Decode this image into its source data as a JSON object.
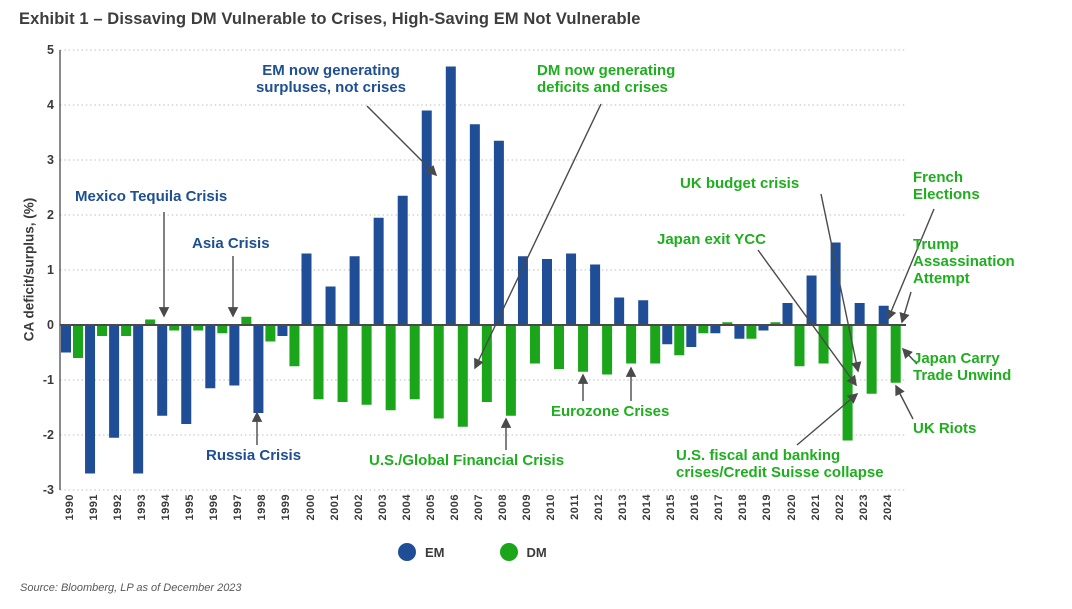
{
  "header": {
    "title": "Exhibit 1 – Dissaving DM Vulnerable to Crises, High-Saving EM Not Vulnerable"
  },
  "source": {
    "text": "Source: Bloomberg, LP as of December 2023"
  },
  "chart_data": {
    "type": "bar",
    "title": "Exhibit 1 – Dissaving DM Vulnerable to Crises, High-Saving EM Not Vulnerable",
    "xlabel": "",
    "ylabel": "CA deficit/surplus, (%)",
    "ylim": [
      -3,
      5
    ],
    "yticks": [
      5,
      4,
      3,
      2,
      1,
      0,
      -1,
      -2,
      -3
    ],
    "grid": "horizontal-dotted",
    "legend_position": "bottom-center",
    "categories": [
      1990,
      1991,
      1992,
      1993,
      1994,
      1995,
      1996,
      1997,
      1998,
      1999,
      2000,
      2001,
      2002,
      2003,
      2004,
      2005,
      2006,
      2007,
      2008,
      2009,
      2010,
      2011,
      2012,
      2013,
      2014,
      2015,
      2016,
      2017,
      2018,
      2019,
      2020,
      2021,
      2022,
      2023,
      2024
    ],
    "series": [
      {
        "name": "EM",
        "color": "#1F4E96",
        "values": [
          -0.5,
          -2.7,
          -2.05,
          -2.7,
          -1.65,
          -1.8,
          -1.15,
          -1.1,
          -1.6,
          -0.2,
          1.3,
          0.7,
          1.25,
          1.95,
          2.35,
          3.9,
          4.7,
          3.65,
          3.35,
          1.25,
          1.2,
          1.3,
          1.1,
          0.5,
          0.45,
          -0.35,
          -0.4,
          -0.15,
          -0.25,
          -0.1,
          0.4,
          0.9,
          1.5,
          0.4,
          0.35
        ]
      },
      {
        "name": "DM",
        "color": "#1AA51A",
        "values": [
          -0.6,
          -0.2,
          -0.2,
          0.1,
          -0.1,
          -0.1,
          -0.15,
          0.15,
          -0.3,
          -0.75,
          -1.35,
          -1.4,
          -1.45,
          -1.55,
          -1.35,
          -1.7,
          -1.85,
          -1.4,
          -1.65,
          -0.7,
          -0.8,
          -0.85,
          -0.9,
          -0.7,
          -0.7,
          -0.55,
          -0.15,
          0.05,
          -0.25,
          0.05,
          -0.75,
          -0.7,
          -2.1,
          -1.25,
          -1.05
        ]
      }
    ],
    "legend": {
      "em": "EM",
      "dm": "DM"
    },
    "colors": {
      "em": "#1F4E96",
      "dm": "#1AA51A",
      "em_text": "#1D4F91",
      "dm_text": "#1FAE1F",
      "arrow": "#4a4a4a"
    },
    "annotations": [
      {
        "id": "mexico",
        "series": "EM",
        "lines": [
          "Mexico Tequila Crisis"
        ]
      },
      {
        "id": "asia",
        "series": "EM",
        "lines": [
          "Asia Crisis"
        ]
      },
      {
        "id": "russia",
        "series": "EM",
        "lines": [
          "Russia Crisis"
        ]
      },
      {
        "id": "em_gen",
        "series": "EM",
        "lines": [
          "EM now generating",
          "surpluses, not crises"
        ]
      },
      {
        "id": "dm_gen",
        "series": "DM",
        "lines": [
          "DM now generating",
          "deficits and crises"
        ]
      },
      {
        "id": "gfc",
        "series": "DM",
        "lines": [
          "U.S./Global Financial Crisis"
        ]
      },
      {
        "id": "eurozone",
        "series": "DM",
        "lines": [
          "Eurozone Crises"
        ]
      },
      {
        "id": "uk_budget",
        "series": "DM",
        "lines": [
          "UK budget crisis"
        ]
      },
      {
        "id": "japan_ycc",
        "series": "DM",
        "lines": [
          "Japan exit YCC"
        ]
      },
      {
        "id": "us_fiscal",
        "series": "DM",
        "lines": [
          "U.S. fiscal and banking",
          "crises/Credit Suisse collapse"
        ]
      },
      {
        "id": "french",
        "series": "DM",
        "lines": [
          "French",
          "Elections"
        ]
      },
      {
        "id": "trump",
        "series": "DM",
        "lines": [
          "Trump",
          "Assassination",
          "Attempt"
        ]
      },
      {
        "id": "japan_carry",
        "series": "DM",
        "lines": [
          "Japan Carry",
          "Trade Unwind"
        ]
      },
      {
        "id": "uk_riots",
        "series": "DM",
        "lines": [
          "UK Riots"
        ]
      }
    ]
  }
}
